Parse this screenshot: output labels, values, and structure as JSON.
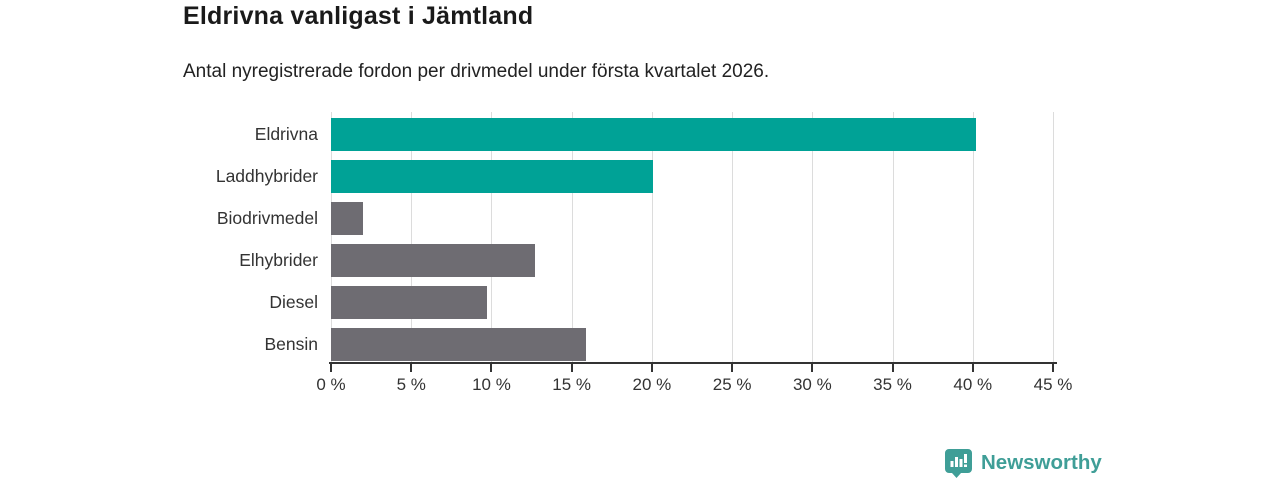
{
  "header": {
    "title": "Eldrivna vanligast i Jämtland",
    "subtitle": "Antal nyregistrerade fordon per drivmedel under första kvartalet 2026."
  },
  "chart_data": {
    "type": "bar",
    "orientation": "horizontal",
    "title": "Eldrivna vanligast i Jämtland",
    "subtitle": "Antal nyregistrerade fordon per drivmedel under första kvartalet 2026.",
    "categories": [
      "Eldrivna",
      "Laddhybrider",
      "Biodrivmedel",
      "Elhybrider",
      "Diesel",
      "Bensin"
    ],
    "values": [
      40.2,
      20.1,
      2.0,
      12.7,
      9.7,
      15.9
    ],
    "unit": "%",
    "bar_colors": [
      "#00a296",
      "#00a296",
      "#6e6c72",
      "#6e6c72",
      "#6e6c72",
      "#6e6c72"
    ],
    "xlim": [
      0,
      45
    ],
    "x_ticks": [
      0,
      5,
      10,
      15,
      20,
      25,
      30,
      35,
      40,
      45
    ],
    "x_tick_suffix": " %",
    "grid": true,
    "legend": "none"
  },
  "footer": {
    "brand": "Newsworthy"
  },
  "colors": {
    "accent_teal": "#00a296",
    "bar_gray": "#6e6c72",
    "logo_teal": "#3f9e97",
    "gridline": "#dcdcdc",
    "axis": "#333333"
  }
}
